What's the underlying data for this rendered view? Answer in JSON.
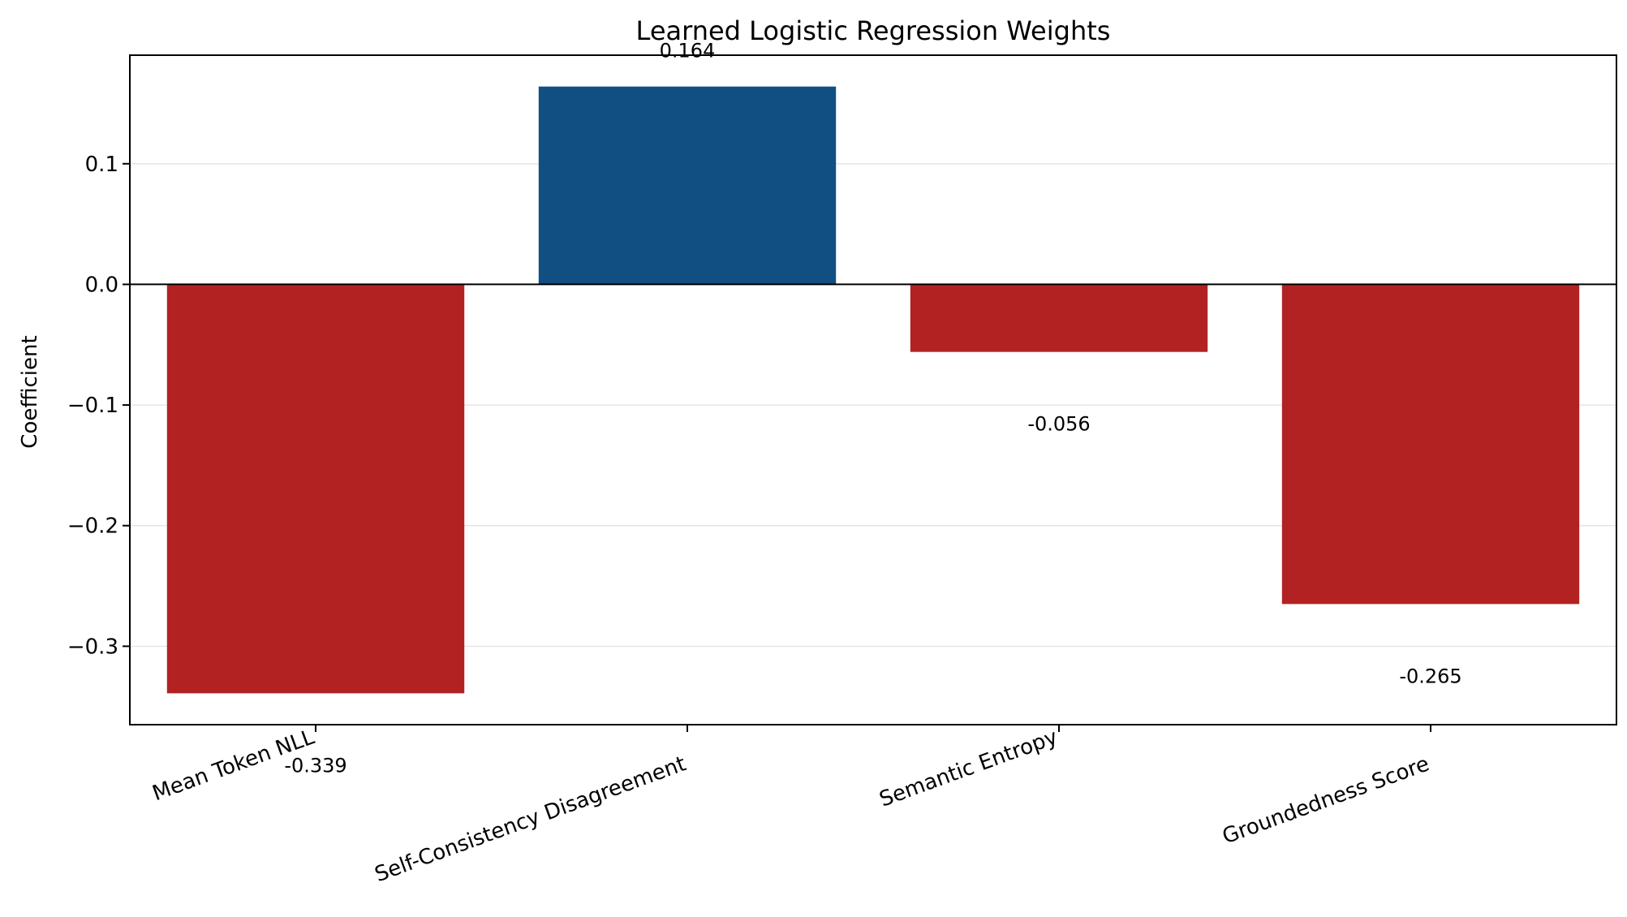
{
  "chart_data": {
    "type": "bar",
    "title": "Learned Logistic Regression Weights",
    "xlabel": "",
    "ylabel": "Coefficient",
    "categories": [
      "Mean Token NLL",
      "Self-Consistency Disagreement",
      "Semantic Entropy",
      "Groundedness Score"
    ],
    "values": [
      -0.339,
      0.164,
      -0.056,
      -0.265
    ],
    "value_labels": [
      "-0.339",
      "0.164",
      "-0.056",
      "-0.265"
    ],
    "ylim": [
      -0.365,
      0.19
    ],
    "yticks": [
      0.1,
      0.0,
      -0.1,
      -0.2,
      -0.3
    ],
    "ytick_labels": [
      "0.1",
      "0.0",
      "−0.1",
      "−0.2",
      "−0.3"
    ],
    "grid": "horizontal",
    "legend": "none",
    "colors": {
      "positive": "#114e82",
      "negative": "#b22222",
      "grid": "#e6e6e6",
      "zero_line": "#000000"
    }
  }
}
